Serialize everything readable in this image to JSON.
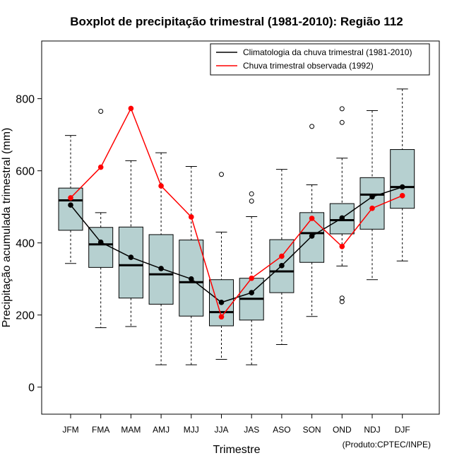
{
  "chart_data": {
    "type": "boxplot",
    "title": "Boxplot de precipitação trimestral (1981-2010): Região 112",
    "xlabel": "Trimestre",
    "ylabel": "Precipitação acumulada trimestral (mm)",
    "ylim": [
      -75,
      960
    ],
    "yticks": [
      0,
      200,
      400,
      600,
      800
    ],
    "categories": [
      "JFM",
      "FMA",
      "MAM",
      "AMJ",
      "MJJ",
      "JJA",
      "JAS",
      "ASO",
      "SON",
      "OND",
      "NDJ",
      "DJF"
    ],
    "boxes": [
      {
        "whisker_low": 343,
        "q1": 435,
        "median": 518,
        "q3": 552,
        "whisker_high": 698,
        "outliers": []
      },
      {
        "whisker_low": 165,
        "q1": 332,
        "median": 396,
        "q3": 443,
        "whisker_high": 484,
        "outliers": [
          765
        ]
      },
      {
        "whisker_low": 168,
        "q1": 247,
        "median": 338,
        "q3": 444,
        "whisker_high": 628,
        "outliers": []
      },
      {
        "whisker_low": 62,
        "q1": 230,
        "median": 313,
        "q3": 423,
        "whisker_high": 650,
        "outliers": []
      },
      {
        "whisker_low": 62,
        "q1": 197,
        "median": 291,
        "q3": 408,
        "whisker_high": 612,
        "outliers": []
      },
      {
        "whisker_low": 77,
        "q1": 170,
        "median": 208,
        "q3": 298,
        "whisker_high": 430,
        "outliers": [
          590
        ]
      },
      {
        "whisker_low": 62,
        "q1": 186,
        "median": 245,
        "q3": 302,
        "whisker_high": 473,
        "outliers": [
          536,
          516
        ]
      },
      {
        "whisker_low": 118,
        "q1": 262,
        "median": 321,
        "q3": 409,
        "whisker_high": 604,
        "outliers": []
      },
      {
        "whisker_low": 196,
        "q1": 346,
        "median": 427,
        "q3": 484,
        "whisker_high": 561,
        "outliers": [
          723
        ]
      },
      {
        "whisker_low": 336,
        "q1": 425,
        "median": 463,
        "q3": 509,
        "whisker_high": 635,
        "outliers": [
          772,
          734,
          247,
          237
        ]
      },
      {
        "whisker_low": 298,
        "q1": 438,
        "median": 534,
        "q3": 581,
        "whisker_high": 767,
        "outliers": []
      },
      {
        "whisker_low": 350,
        "q1": 496,
        "median": 555,
        "q3": 659,
        "whisker_high": 827,
        "outliers": []
      }
    ],
    "series": [
      {
        "name": "Climatologia da chuva trimestral (1981-2010)",
        "color": "#000000",
        "values": [
          505,
          402,
          360,
          329,
          300,
          235,
          262,
          337,
          419,
          469,
          528,
          555
        ]
      },
      {
        "name": "Chuva trimestral observada (1992)",
        "color": "#ff0000",
        "values": [
          525,
          610,
          773,
          558,
          472,
          195,
          302,
          363,
          468,
          390,
          496,
          531
        ]
      }
    ],
    "legend_position": "top-right",
    "box_fill": "#b6d0d0",
    "footer": "(Produto:CPTEC/INPE)"
  }
}
